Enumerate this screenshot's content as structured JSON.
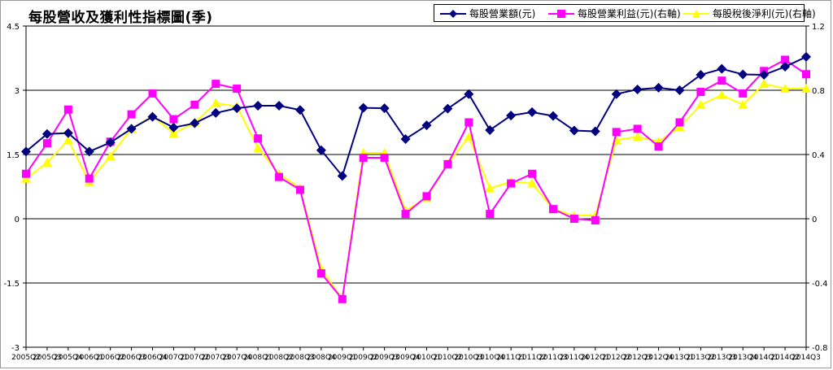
{
  "title": "每股營收及獲利性指標圖(季)",
  "colors": {
    "revenue": "#000080",
    "op_income": "#ff00ff",
    "net_income": "#ffff00",
    "grid": "#000000",
    "background": "#ffffff"
  },
  "legend": {
    "items": [
      {
        "label": "每股營業額(元)",
        "marker": "diamond",
        "color": "#000080"
      },
      {
        "label": "每股營業利益(元)(右軸)",
        "marker": "square",
        "color": "#ff00ff"
      },
      {
        "label": "每股稅後淨利(元)(右軸)",
        "marker": "triangle",
        "color": "#ffff00"
      }
    ]
  },
  "chart_data": {
    "type": "line",
    "title": "每股營收及獲利性指標圖(季)",
    "x": [
      "2005Q2",
      "2005Q3",
      "2005Q4",
      "2006Q1",
      "2006Q2",
      "2006Q3",
      "2006Q4",
      "2007Q1",
      "2007Q2",
      "2007Q3",
      "2007Q4",
      "2008Q1",
      "2008Q2",
      "2008Q3",
      "2008Q4",
      "2009Q1",
      "2009Q2",
      "2009Q3",
      "2009Q4",
      "2010Q1",
      "2010Q2",
      "2010Q3",
      "2010Q4",
      "2011Q1",
      "2011Q2",
      "2011Q3",
      "2011Q4",
      "2012Q1",
      "2012Q2",
      "2012Q3",
      "2012Q4",
      "2013Q1",
      "2013Q2",
      "2013Q3",
      "2013Q4",
      "2014Q1",
      "2014Q2",
      "2014Q3"
    ],
    "x_tick_labels": [
      "2005Q2",
      "2005Q3",
      "2005Q4",
      "2006Q1",
      "2006Q2",
      "2006Q3",
      "2006Q4",
      "2007Q1",
      "2007Q2",
      "2007Q3",
      "2007Q4",
      "2008Q1",
      "2008Q2",
      "2008Q3",
      "2008Q4",
      "2009Q1",
      "2009Q2",
      "2009Q3",
      "2009Q4",
      "2010Q1",
      "2010Q2",
      "2010Q3",
      "2010Q4",
      "2011Q1",
      "2011Q2",
      "2011Q3",
      "2011Q4",
      "2012Q1",
      "2012Q2",
      "2012Q3",
      "2012Q4",
      "2013Q1",
      "2013Q2",
      "2013Q3",
      "2013Q4",
      "2014Q1",
      "2014Q2",
      "2014Q3"
    ],
    "left_axis": {
      "ylim": [
        -3,
        4.5
      ],
      "ticks": [
        "4.5",
        "3",
        "1.5",
        "0",
        "-1.5",
        "-3"
      ],
      "tick_values": [
        4.5,
        3,
        1.5,
        0,
        -1.5,
        -3
      ]
    },
    "right_axis": {
      "ylim": [
        -0.8,
        1.2
      ],
      "ticks": [
        "1.2",
        "0.8",
        "0.4",
        "0",
        "-0.4",
        "-0.8"
      ],
      "tick_values": [
        1.2,
        0.8,
        0.4,
        0,
        -0.4,
        -0.8
      ]
    },
    "grid": true,
    "legend_position": "top-right",
    "series": [
      {
        "name": "每股營業額(元)",
        "axis": "left",
        "marker": "diamond",
        "values": [
          1.57,
          1.98,
          2.0,
          1.57,
          1.78,
          2.1,
          2.38,
          2.13,
          2.23,
          2.47,
          2.58,
          2.64,
          2.64,
          2.54,
          1.6,
          1.0,
          2.59,
          2.58,
          1.86,
          2.18,
          2.57,
          2.91,
          2.07,
          2.41,
          2.49,
          2.4,
          2.06,
          2.04,
          2.91,
          3.02,
          3.06,
          3.0,
          3.36,
          3.5,
          3.37,
          3.36,
          3.55,
          3.78
        ]
      },
      {
        "name": "每股營業利益(元)(右軸)",
        "axis": "right",
        "marker": "square",
        "values": [
          0.28,
          0.47,
          0.68,
          0.25,
          0.48,
          0.65,
          0.78,
          0.62,
          0.71,
          0.84,
          0.81,
          0.5,
          0.26,
          0.18,
          -0.34,
          -0.5,
          0.38,
          0.38,
          0.03,
          0.14,
          0.34,
          0.6,
          0.03,
          0.22,
          0.28,
          0.06,
          0.0,
          -0.01,
          0.54,
          0.56,
          0.45,
          0.6,
          0.79,
          0.86,
          0.78,
          0.92,
          0.99,
          0.9
        ]
      },
      {
        "name": "每股稅後淨利(元)(右軸)",
        "axis": "right",
        "marker": "triangle",
        "values": [
          0.25,
          0.35,
          0.49,
          0.23,
          0.39,
          0.56,
          0.64,
          0.53,
          0.6,
          0.72,
          0.7,
          0.44,
          0.28,
          0.19,
          -0.31,
          -0.5,
          0.41,
          0.41,
          0.05,
          0.13,
          0.34,
          0.51,
          0.19,
          0.23,
          0.22,
          0.06,
          0.02,
          0.02,
          0.49,
          0.51,
          0.48,
          0.57,
          0.71,
          0.77,
          0.71,
          0.84,
          0.81,
          0.81
        ]
      }
    ]
  }
}
